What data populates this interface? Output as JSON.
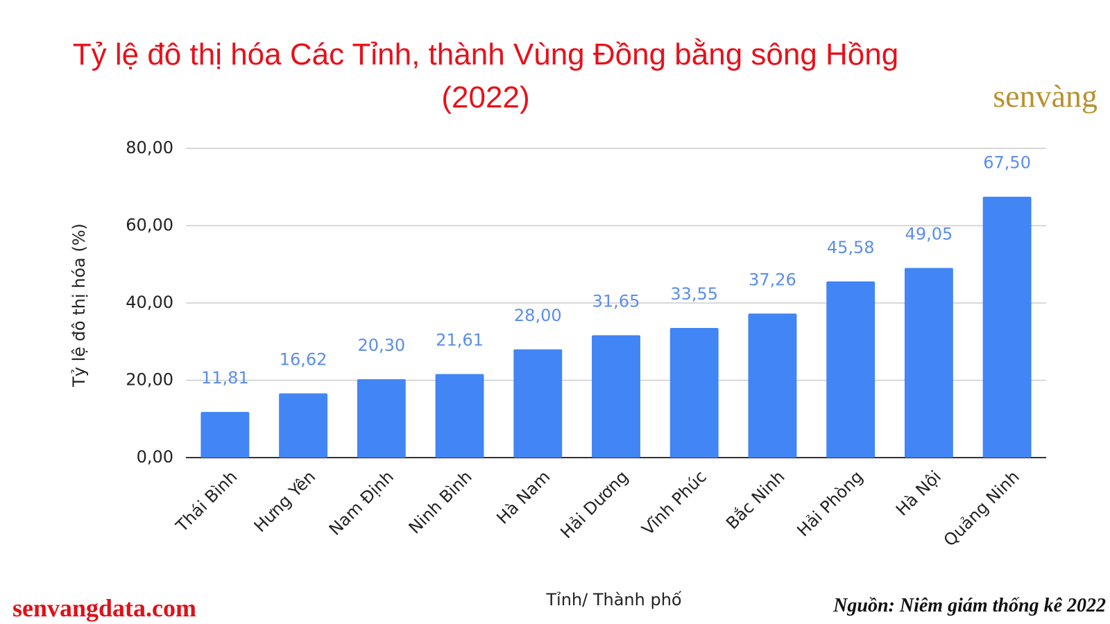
{
  "chart_data": {
    "type": "bar",
    "title": "Tỷ lệ đô thị hóa Các Tỉnh, thành Vùng Đồng bằng sông Hồng (2022)",
    "y_label": "Tỷ lệ đô thị hóa (%)",
    "x_label": "Tỉnh/ Thành phố",
    "categories": [
      "Thái Bình",
      "Hưng Yên",
      "Nam Định",
      "Ninh Bình",
      "Hà Nam",
      "Hải Dương",
      "Vĩnh Phúc",
      "Bắc Ninh",
      "Hải Phòng",
      "Hà Nội",
      "Quảng Ninh"
    ],
    "values": [
      11.81,
      16.62,
      20.3,
      21.61,
      28.0,
      31.65,
      33.55,
      37.26,
      45.58,
      49.05,
      67.5
    ],
    "value_labels": [
      "11,81",
      "16,62",
      "20,30",
      "21,61",
      "28,00",
      "31,65",
      "33,55",
      "37,26",
      "45,58",
      "49,05",
      "67,50"
    ],
    "color": "#4285f4",
    "ylim": [
      0,
      80
    ],
    "yticks": [
      {
        "value": 0,
        "label": "0,00"
      },
      {
        "value": 20,
        "label": "20,00"
      },
      {
        "value": 40,
        "label": "40,00"
      },
      {
        "value": 60,
        "label": "60,00"
      },
      {
        "value": 80,
        "label": "80,00"
      }
    ],
    "grid": true
  },
  "logo": "senvàng",
  "footer": {
    "site": "senvangdata.com",
    "source": "Nguồn: Niêm giám thống kê 2022"
  }
}
